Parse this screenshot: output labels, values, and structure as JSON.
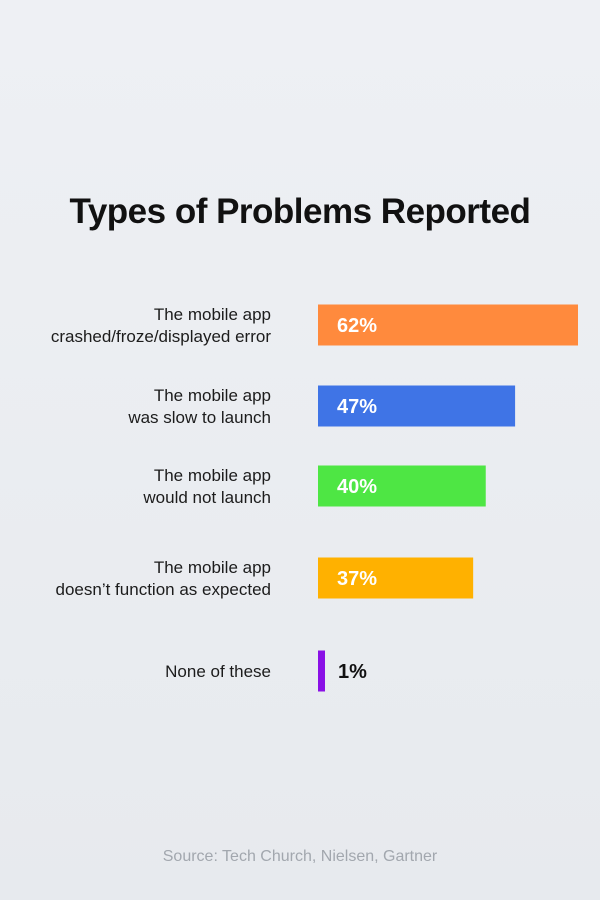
{
  "chart_data": {
    "type": "bar",
    "orientation": "horizontal",
    "title": "Types of Problems Reported",
    "categories": [
      [
        "The mobile app",
        "crashed/froze/displayed error"
      ],
      [
        "The mobile app",
        "was slow to launch"
      ],
      [
        "The mobile app",
        "would not launch"
      ],
      [
        "The mobile app",
        "doesn’t function as expected"
      ],
      [
        "None of these"
      ]
    ],
    "values": [
      62,
      47,
      40,
      37,
      1
    ],
    "value_labels": [
      "62%",
      "47%",
      "40%",
      "37%",
      "1%"
    ],
    "colors": [
      "#ff8a3d",
      "#3f74e6",
      "#4ee644",
      "#ffb100",
      "#8a10e6"
    ],
    "unit": "%",
    "xlim": [
      0,
      62
    ],
    "grid": false,
    "legend": "none"
  },
  "source": "Source: Tech Church, Nielsen, Gartner"
}
